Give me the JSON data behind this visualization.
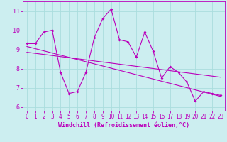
{
  "xlabel": "Windchill (Refroidissement éolien,°C)",
  "bg_color": "#cceef0",
  "line_color": "#bb00bb",
  "grid_color": "#aadddd",
  "x_values": [
    0,
    1,
    2,
    3,
    4,
    5,
    6,
    7,
    8,
    9,
    10,
    11,
    12,
    13,
    14,
    15,
    16,
    17,
    18,
    19,
    20,
    21,
    22,
    23
  ],
  "y_main": [
    9.3,
    9.3,
    9.9,
    10.0,
    7.8,
    6.7,
    6.8,
    7.8,
    9.6,
    10.6,
    11.1,
    9.5,
    9.4,
    8.6,
    9.9,
    8.9,
    7.5,
    8.1,
    7.8,
    7.3,
    6.3,
    6.8,
    6.7,
    6.6
  ],
  "trend1_x": [
    0,
    23
  ],
  "trend1_y": [
    9.15,
    6.55
  ],
  "trend2_x": [
    0,
    23
  ],
  "trend2_y": [
    8.85,
    7.55
  ],
  "ylim": [
    5.8,
    11.5
  ],
  "xlim": [
    -0.5,
    23.5
  ],
  "yticks": [
    6,
    7,
    8,
    9,
    10,
    11
  ],
  "xticks": [
    0,
    1,
    2,
    3,
    4,
    5,
    6,
    7,
    8,
    9,
    10,
    11,
    12,
    13,
    14,
    15,
    16,
    17,
    18,
    19,
    20,
    21,
    22,
    23
  ],
  "tick_fontsize": 5.5,
  "xlabel_fontsize": 6.0
}
